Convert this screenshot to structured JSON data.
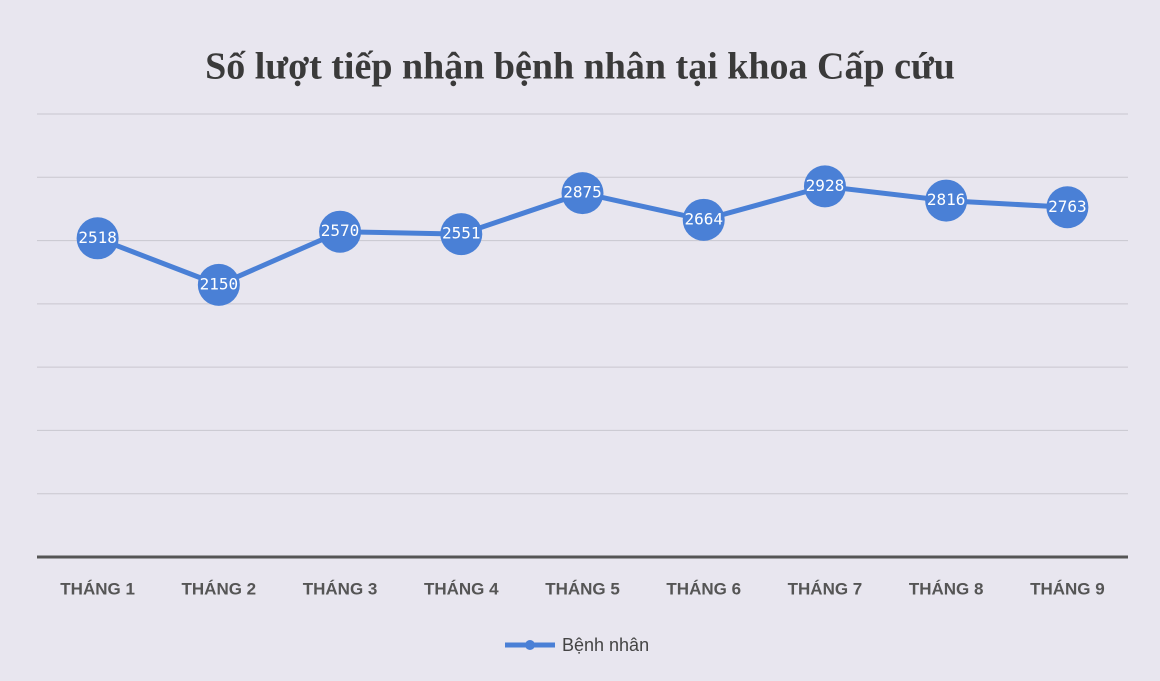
{
  "chart_data": {
    "type": "line",
    "title": "Số lượt tiếp nhận bệnh nhân tại khoa Cấp cứu",
    "categories": [
      "THÁNG 1",
      "THÁNG 2",
      "THÁNG 3",
      "THÁNG 4",
      "THÁNG 5",
      "THÁNG 6",
      "THÁNG 7",
      "THÁNG 8",
      "THÁNG 9"
    ],
    "series": [
      {
        "name": "Bệnh nhân",
        "color": "#4a80d6",
        "values": [
          2518,
          2150,
          2570,
          2551,
          2875,
          2664,
          2928,
          2816,
          2763
        ]
      }
    ],
    "ylim": [
      0,
      3500
    ],
    "yticks": [
      0,
      500,
      1000,
      1500,
      2000,
      2500,
      3000,
      3500
    ],
    "grid": true,
    "legend": "bottom"
  }
}
